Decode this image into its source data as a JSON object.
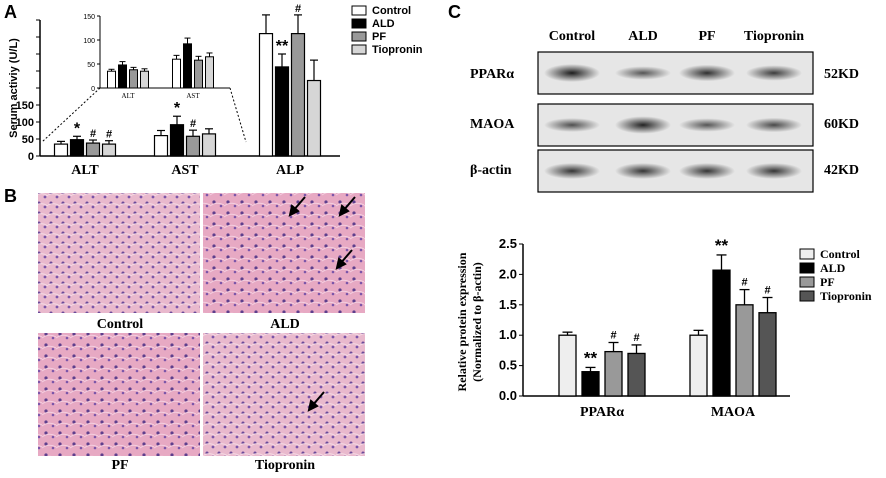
{
  "panels": {
    "a": "A",
    "b": "B",
    "c": "C"
  },
  "chart_data": [
    {
      "type": "bar",
      "title": "",
      "ylabel": "Serum activiy (U/L)",
      "categories": [
        "ALT",
        "AST",
        "ALP"
      ],
      "ylim": [
        0,
        400
      ],
      "yticks": [
        0,
        50,
        100,
        150,
        200,
        250,
        300,
        350,
        400
      ],
      "ytick_labels": [
        "0",
        "50",
        "100",
        "150",
        "",
        "",
        "",
        "",
        ""
      ],
      "legend": {
        "placement": "top-right"
      },
      "series": [
        {
          "name": "Control",
          "color": "#ffffff",
          "values": [
            35,
            60,
            360
          ],
          "errors": [
            8,
            15,
            55
          ]
        },
        {
          "name": "ALD",
          "color": "#000000",
          "values": [
            48,
            92,
            262
          ],
          "errors": [
            10,
            25,
            38
          ]
        },
        {
          "name": "PF",
          "color": "#999999",
          "values": [
            38,
            58,
            360
          ],
          "errors": [
            9,
            18,
            55
          ]
        },
        {
          "name": "Tiopronin",
          "color": "#d6d6d6",
          "values": [
            35,
            65,
            222
          ],
          "errors": [
            10,
            15,
            60
          ]
        }
      ],
      "significance": [
        [
          "",
          "",
          ""
        ],
        [
          "*",
          "*",
          "**"
        ],
        [
          "#",
          "#",
          "#"
        ],
        [
          "#",
          "",
          ""
        ]
      ],
      "inset": {
        "categories": [
          "ALT",
          "AST"
        ],
        "ylim": [
          0,
          150
        ],
        "yticks": [
          0,
          50,
          100,
          150
        ],
        "values": [
          [
            35,
            60
          ],
          [
            48,
            92
          ],
          [
            38,
            58
          ],
          [
            35,
            65
          ]
        ],
        "errors": [
          [
            4,
            8
          ],
          [
            7,
            12
          ],
          [
            5,
            8
          ],
          [
            5,
            8
          ]
        ]
      }
    },
    {
      "type": "bar",
      "title": "",
      "ylabel": "Relative protein expression",
      "ylabel2": "(Normalized to β-actin)",
      "categories": [
        "PPARα",
        "MAOA"
      ],
      "ylim": [
        0,
        2.5
      ],
      "yticks": [
        0.0,
        0.5,
        1.0,
        1.5,
        2.0,
        2.5
      ],
      "ytick_labels": [
        "0.0",
        "0.5",
        "1.0",
        "1.5",
        "2.0",
        "2.5"
      ],
      "legend": {
        "placement": "right"
      },
      "series": [
        {
          "name": "Control",
          "color": "#eeeeee",
          "values": [
            1.0,
            1.0
          ],
          "errors": [
            0.05,
            0.08
          ]
        },
        {
          "name": "ALD",
          "color": "#000000",
          "values": [
            0.4,
            2.07
          ],
          "errors": [
            0.07,
            0.25
          ]
        },
        {
          "name": "PF",
          "color": "#999999",
          "values": [
            0.73,
            1.5
          ],
          "errors": [
            0.15,
            0.25
          ]
        },
        {
          "name": "Tiopronin",
          "color": "#555555",
          "values": [
            0.7,
            1.37
          ],
          "errors": [
            0.14,
            0.25
          ]
        }
      ],
      "significance": [
        [
          "",
          ""
        ],
        [
          "**",
          "**"
        ],
        [
          "#",
          "#"
        ],
        [
          "#",
          "#"
        ]
      ]
    }
  ],
  "histology": {
    "labels": [
      "Control",
      "ALD",
      "PF",
      "Tiopronin"
    ],
    "arrows_per_image": [
      0,
      3,
      0,
      1
    ]
  },
  "western_blot": {
    "columns": [
      "Control",
      "ALD",
      "PF",
      "Tiopronin"
    ],
    "rows": [
      {
        "name": "PPARα",
        "size": "52KD",
        "intensity": [
          1.0,
          0.55,
          0.85,
          0.75
        ]
      },
      {
        "name": "MAOA",
        "size": "60KD",
        "intensity": [
          0.6,
          0.95,
          0.55,
          0.65
        ]
      },
      {
        "name": "β-actin",
        "size": "42KD",
        "intensity": [
          0.8,
          0.8,
          0.8,
          0.8
        ]
      }
    ]
  }
}
